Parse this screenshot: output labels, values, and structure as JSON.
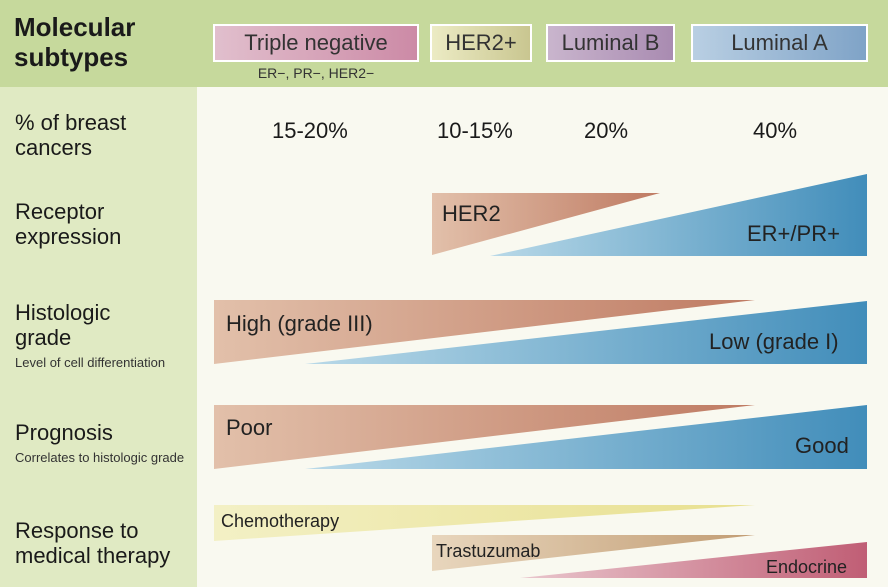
{
  "title": {
    "line1": "Molecular",
    "line2": "subtypes"
  },
  "subtypes": [
    {
      "name": "Triple negative",
      "sub": "ER−, PR−, HER2−"
    },
    {
      "name": "HER2+"
    },
    {
      "name": "Luminal B"
    },
    {
      "name": "Luminal A"
    }
  ],
  "rows": {
    "percent": {
      "label_line1": "% of breast",
      "label_line2": "cancers",
      "values": [
        "15-20%",
        "10-15%",
        "20%",
        "40%"
      ]
    },
    "receptor": {
      "label_line1": "Receptor",
      "label_line2": "expression",
      "bar_her2": "HER2",
      "bar_er": "ER+/PR+"
    },
    "grade": {
      "label_line1": "Histologic",
      "label_line2": "grade",
      "note": "Level of cell differentiation",
      "bar_high": "High (grade III)",
      "bar_low": "Low (grade I)"
    },
    "prognosis": {
      "label_line1": "Prognosis",
      "note": "Correlates to histologic grade",
      "bar_poor": "Poor",
      "bar_good": "Good"
    },
    "therapy": {
      "label_line1": "Response to",
      "label_line2": "medical therapy",
      "bar_chemo": "Chemotherapy",
      "bar_trast": "Trastuzumab",
      "bar_endo": "Endocrine"
    }
  },
  "colors": {
    "header": "#c6d99c",
    "side": "#e0eac3",
    "warm": "#c4806a",
    "cool": "#4f94bb",
    "chemo": "#ede7a5",
    "endocrine": "#c4677b"
  }
}
